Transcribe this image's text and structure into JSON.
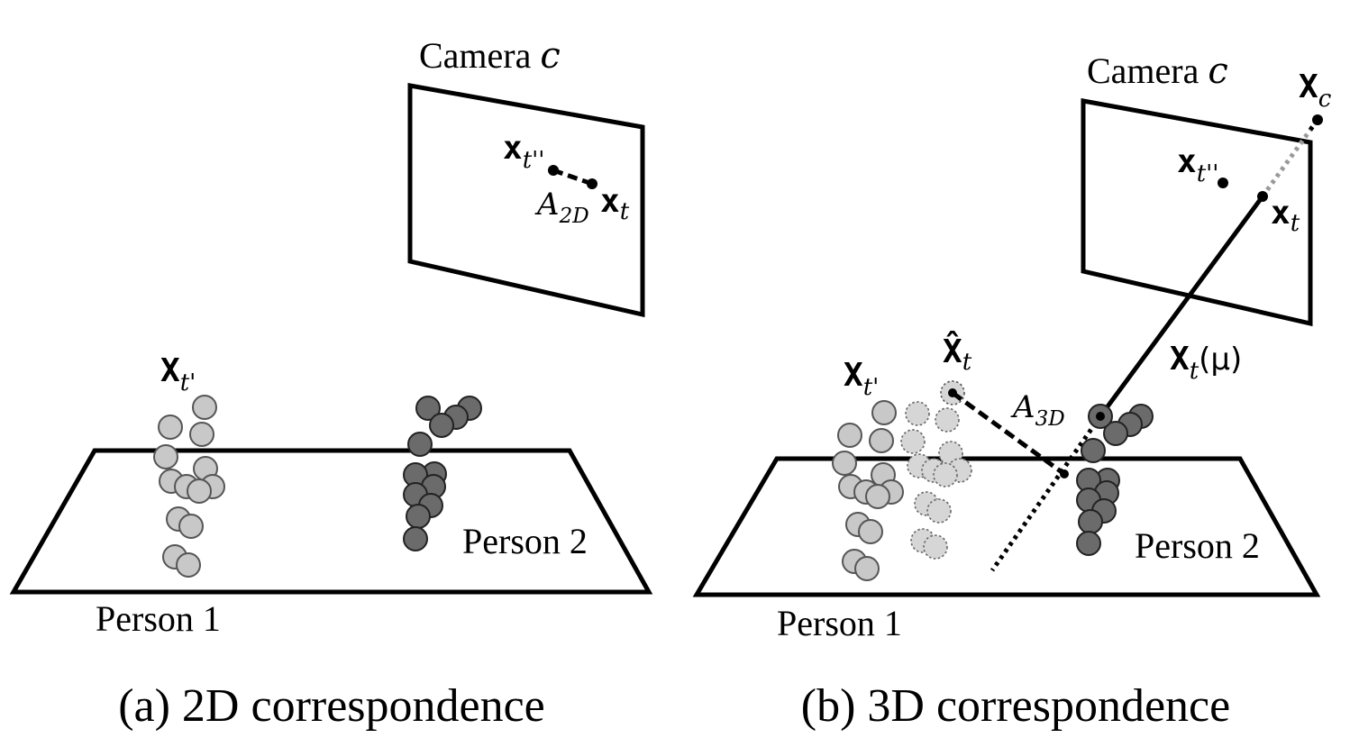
{
  "panel_a": {
    "camera_label": "Camera ",
    "camera_var": "c",
    "pt_upper": {
      "base": "x",
      "sub": "t''"
    },
    "pt_lower": {
      "base": "x",
      "sub": "t"
    },
    "affinity": {
      "base": "A",
      "sub": "2D"
    },
    "person1_var": {
      "base": "X",
      "sub": "t'"
    },
    "person1_label": "Person 1",
    "person2_label": "Person 2",
    "caption": "(a) 2D correspondence"
  },
  "panel_b": {
    "camera_label": "Camera ",
    "camera_var": "c",
    "cam_center": {
      "base": "X",
      "sub": "c"
    },
    "pt_upper": {
      "base": "x",
      "sub": "t''"
    },
    "pt_lower": {
      "base": "x",
      "sub": "t"
    },
    "ray": {
      "base": "X",
      "sub": "t",
      "arg": "(μ)"
    },
    "predicted": {
      "base": "X̂",
      "sub": "t"
    },
    "affinity": {
      "base": "A",
      "sub": "3D"
    },
    "person1_var": {
      "base": "X",
      "sub": "t'"
    },
    "person1_label": "Person 1",
    "person2_label": "Person 2",
    "caption": "(b) 3D correspondence"
  }
}
